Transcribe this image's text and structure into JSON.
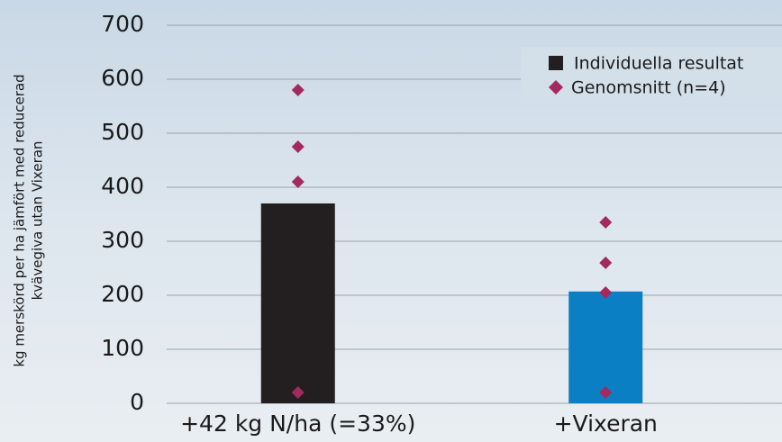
{
  "chart_data": {
    "type": "bar",
    "ylabel": [
      "kg merskörd per ha jämfört med reducerad",
      "kvävegiva utan Vixeran"
    ],
    "categories": [
      "+42 kg N/ha (=33%)",
      "+Vixeran"
    ],
    "ylim": [
      0,
      700
    ],
    "yticks": [
      0,
      100,
      200,
      300,
      400,
      500,
      600,
      700
    ],
    "grid": true,
    "series": [
      {
        "name": "Individuella resultat",
        "legend_color": "#231f20",
        "colors": [
          "#231f20",
          "#0b7fc3"
        ],
        "values": [
          370,
          207
        ]
      },
      {
        "name": "Genomsnitt (n=4)",
        "color": "#a3295f",
        "values": [
          [
            580,
            475,
            410,
            20
          ],
          [
            335,
            260,
            205,
            20
          ]
        ]
      }
    ]
  }
}
